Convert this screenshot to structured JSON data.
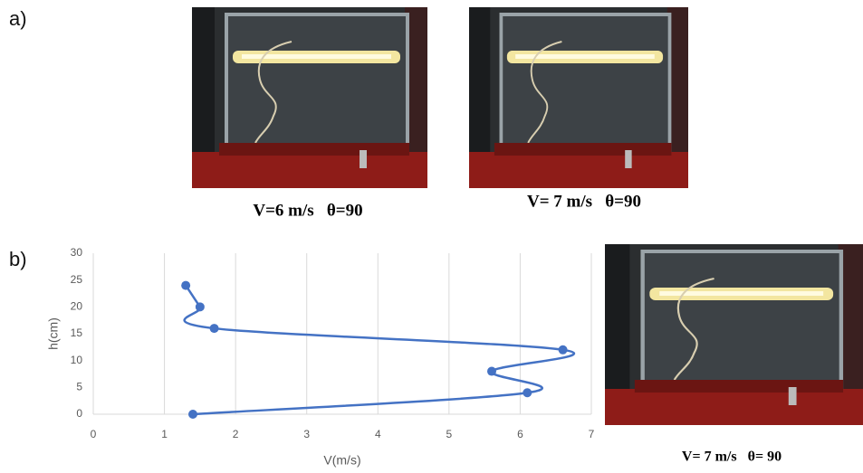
{
  "labels": {
    "a": "a)",
    "b": "b)"
  },
  "captions": [
    "V=6 m/s   θ=90",
    "V= 7 m/s   θ=90",
    "V= 7 m/s   θ= 90"
  ],
  "chart_data": {
    "type": "line",
    "x_label": "V(m/s)",
    "y_label": "h(cm)",
    "x": [
      1.4,
      6.1,
      5.6,
      6.6,
      1.7,
      1.5,
      1.3
    ],
    "series": [
      {
        "values": [
          0,
          4,
          8,
          12,
          16,
          20,
          24
        ],
        "color": "#4472c4"
      }
    ],
    "xlim": [
      0,
      7
    ],
    "xticks": [
      0,
      1,
      2,
      3,
      4,
      5,
      6,
      7
    ],
    "ylim": [
      0,
      30
    ],
    "yticks": [
      0,
      5,
      10,
      15,
      20,
      25,
      30
    ],
    "grid": true
  }
}
